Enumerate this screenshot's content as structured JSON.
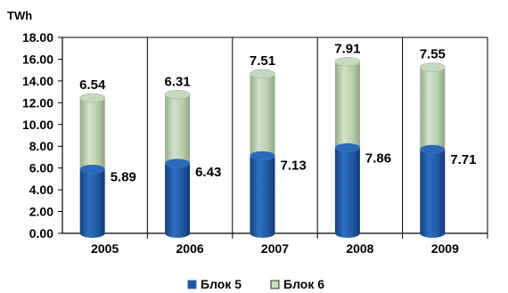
{
  "chart_data": {
    "type": "bar",
    "stacked": true,
    "style": "3d-cylinder",
    "ylabel": "TWh",
    "ylim": [
      0,
      18
    ],
    "ytick_step": 2,
    "ytick_labels": [
      "0.00",
      "2.00",
      "4.00",
      "6.00",
      "8.00",
      "10.00",
      "12.00",
      "14.00",
      "16.00",
      "18.00"
    ],
    "categories": [
      "2005",
      "2006",
      "2007",
      "2008",
      "2009"
    ],
    "series": [
      {
        "name": "Блок 5",
        "values": [
          5.89,
          6.43,
          7.13,
          7.86,
          7.71
        ],
        "color": "#1f5aa6",
        "labels": [
          "5.89",
          "6.43",
          "7.13",
          "7.86",
          "7.71"
        ]
      },
      {
        "name": "Блок 6",
        "values": [
          6.54,
          6.31,
          7.51,
          7.91,
          7.55
        ],
        "color": "#b9cfae",
        "labels": [
          "6.54",
          "6.31",
          "7.51",
          "7.91",
          "7.55"
        ]
      }
    ],
    "grid": "vertical-separators",
    "legend": "bottom-center"
  }
}
